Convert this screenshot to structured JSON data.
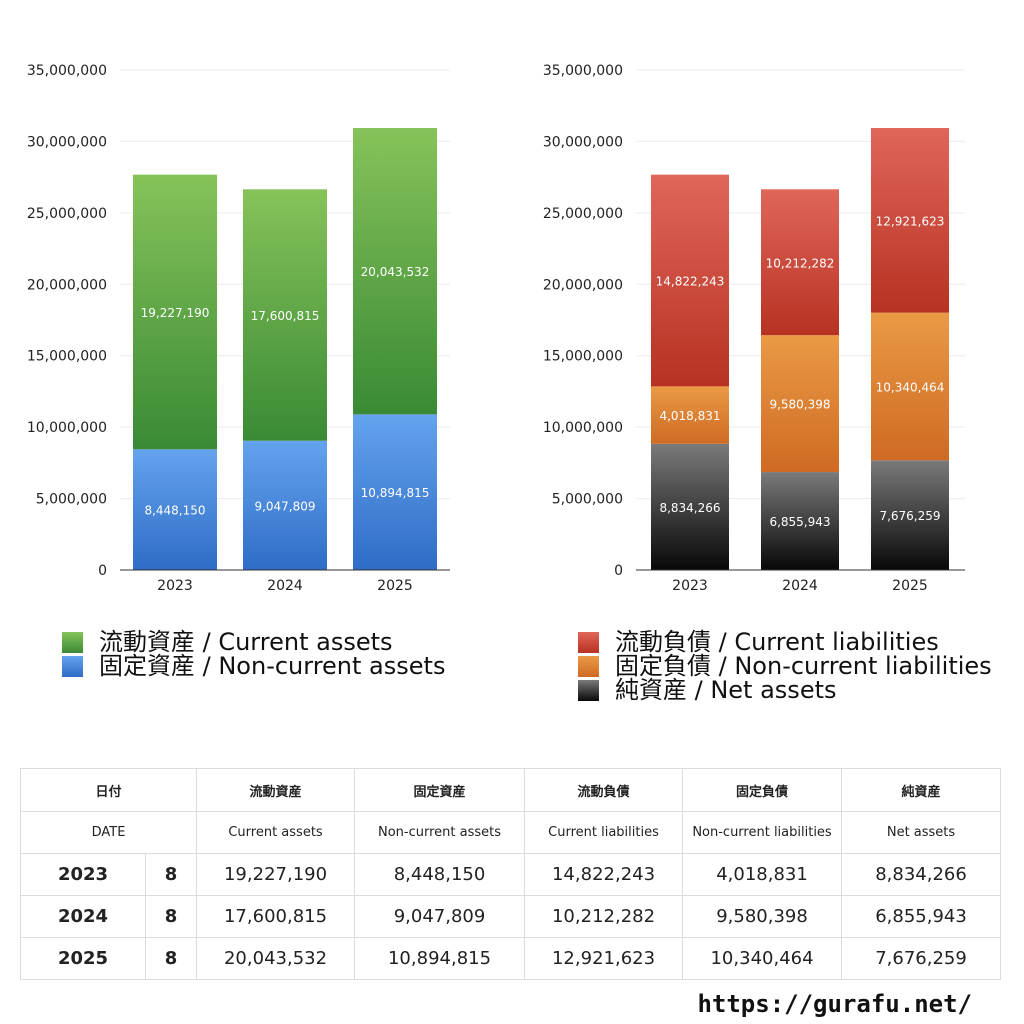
{
  "chart_data": [
    {
      "type": "bar",
      "stacked": true,
      "categories": [
        "2023",
        "2024",
        "2025"
      ],
      "ylim": [
        0,
        35000000
      ],
      "ytick_labels": [
        "0",
        "5,000,000",
        "10,000,000",
        "15,000,000",
        "20,000,000",
        "25,000,000",
        "30,000,000",
        "35,000,000"
      ],
      "grid": true,
      "legend_position": "bottom",
      "series": [
        {
          "name": "固定資産 / Non-current assets",
          "values": [
            8448150,
            9047809,
            10894815
          ],
          "labels": [
            "8,448,150",
            "9,047,809",
            "10,894,815"
          ],
          "color_top": "#64a3ee",
          "color_bottom": "#2f6cc6"
        },
        {
          "name": "流動資産 / Current assets",
          "values": [
            19227190,
            17600815,
            20043532
          ],
          "labels": [
            "19,227,190",
            "17,600,815",
            "20,043,532"
          ],
          "color_top": "#86c35a",
          "color_bottom": "#3a8a35"
        }
      ]
    },
    {
      "type": "bar",
      "stacked": true,
      "categories": [
        "2023",
        "2024",
        "2025"
      ],
      "ylim": [
        0,
        35000000
      ],
      "ytick_labels": [
        "0",
        "5,000,000",
        "10,000,000",
        "15,000,000",
        "20,000,000",
        "25,000,000",
        "30,000,000",
        "35,000,000"
      ],
      "grid": true,
      "legend_position": "bottom",
      "series": [
        {
          "name": "純資産 / Net assets",
          "values": [
            8834266,
            6855943,
            7676259
          ],
          "labels": [
            "8,834,266",
            "6,855,943",
            "7,676,259"
          ],
          "color_top": "#7a7a7a",
          "color_bottom": "#080808"
        },
        {
          "name": "固定負債 / Non-current liabilities",
          "values": [
            4018831,
            9580398,
            10340464
          ],
          "labels": [
            "4,018,831",
            "9,580,398",
            "10,340,464"
          ],
          "color_top": "#ea9a45",
          "color_bottom": "#cf6a24"
        },
        {
          "name": "流動負債 / Current liabilities",
          "values": [
            14822243,
            10212282,
            12921623
          ],
          "labels": [
            "14,822,243",
            "10,212,282",
            "12,921,623"
          ],
          "color_top": "#e0665a",
          "color_bottom": "#b73222"
        }
      ]
    }
  ],
  "legends": {
    "left": [
      {
        "label": "流動資産 / Current assets",
        "color_top": "#86c35a",
        "color_bottom": "#3a8a35"
      },
      {
        "label": "固定資産 / Non-current assets",
        "color_top": "#64a3ee",
        "color_bottom": "#2f6cc6"
      }
    ],
    "right": [
      {
        "label": "流動負債 / Current liabilities",
        "color_top": "#e0665a",
        "color_bottom": "#b73222"
      },
      {
        "label": "固定負債 / Non-current liabilities",
        "color_top": "#ea9a45",
        "color_bottom": "#cf6a24"
      },
      {
        "label": "純資産 / Net assets",
        "color_top": "#7a7a7a",
        "color_bottom": "#080808"
      }
    ]
  },
  "table": {
    "header_jp": {
      "date": "日付",
      "current_assets": "流動資産",
      "noncurrent_assets": "固定資産",
      "current_liabilities": "流動負債",
      "noncurrent_liabilities": "固定負債",
      "net_assets": "純資産"
    },
    "header_en": {
      "date": "DATE",
      "current_assets": "Current assets",
      "noncurrent_assets": "Non-current assets",
      "current_liabilities": "Current liabilities",
      "noncurrent_liabilities": "Non-current liabilities",
      "net_assets": "Net assets"
    },
    "rows": [
      {
        "year": "2023",
        "month": "8",
        "current_assets": "19,227,190",
        "noncurrent_assets": "8,448,150",
        "current_liabilities": "14,822,243",
        "noncurrent_liabilities": "4,018,831",
        "net_assets": "8,834,266"
      },
      {
        "year": "2024",
        "month": "8",
        "current_assets": "17,600,815",
        "noncurrent_assets": "9,047,809",
        "current_liabilities": "10,212,282",
        "noncurrent_liabilities": "9,580,398",
        "net_assets": "6,855,943"
      },
      {
        "year": "2025",
        "month": "8",
        "current_assets": "20,043,532",
        "noncurrent_assets": "10,894,815",
        "current_liabilities": "12,921,623",
        "noncurrent_liabilities": "10,340,464",
        "net_assets": "7,676,259"
      }
    ]
  },
  "site_url": "https://gurafu.net/"
}
